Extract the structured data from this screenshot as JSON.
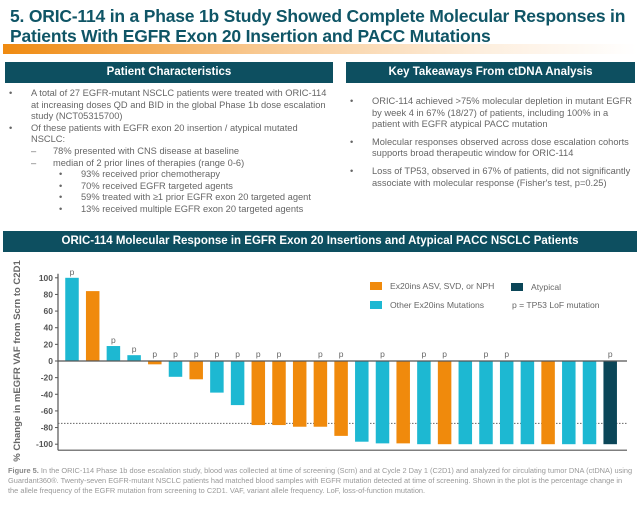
{
  "title": "5. ORIC-114 in a Phase 1b Study Showed Complete Molecular Responses in Patients With EGFR Exon 20 Insertion and PACC Mutations",
  "patient": {
    "header": "Patient Characteristics",
    "items": [
      {
        "level": 1,
        "text": "A total of 27 EGFR-mutant NSCLC patients were treated with ORIC-114 at increasing doses QD and BID in the global Phase 1b dose escalation study (NCT05315700)"
      },
      {
        "level": 1,
        "text": "Of these patients with EGFR exon 20 insertion / atypical mutated NSCLC:"
      },
      {
        "level": 2,
        "text": "78% presented with CNS disease at baseline"
      },
      {
        "level": 2,
        "text": "median of 2 prior lines of therapies (range 0-6)"
      },
      {
        "level": 3,
        "text": "93% received prior chemotherapy"
      },
      {
        "level": 3,
        "text": "70% received EGFR targeted agents"
      },
      {
        "level": 3,
        "text": "59% treated with ≥1 prior EGFR exon 20 targeted agent"
      },
      {
        "level": 3,
        "text": "13% received multiple EGFR exon 20 targeted agents"
      }
    ]
  },
  "takeaways": {
    "header": "Key Takeaways From ctDNA Analysis",
    "items": [
      "ORIC-114 achieved >75% molecular depletion in mutant EGFR by week 4 in 67% (18/27) of patients, including 100% in a patient with EGFR atypical PACC mutation",
      "Molecular responses observed across dose escalation cohorts supports broad therapeutic window for ORIC-114",
      "Loss of TP53, observed in 67% of patients, did not significantly associate with molecular response (Fisher's test, p=0.25)"
    ]
  },
  "chart_data": {
    "type": "bar",
    "title": "ORIC-114 Molecular Response in EGFR Exon 20 Insertions and Atypical PACC NSCLC Patients",
    "ylabel": "% Change in mEGFR VAF from Scrn to C2D1",
    "xlabel": "",
    "ylim": [
      -100,
      100
    ],
    "yticks": [
      100,
      80,
      60,
      40,
      20,
      0,
      -20,
      -40,
      -60,
      -80,
      -100
    ],
    "reference_line": -75,
    "legend_placement": "top-right",
    "groups": {
      "asv": {
        "name": "Ex20ins ASV, SVD, or NPH",
        "color": "#f08a0c"
      },
      "other": {
        "name": "Other Ex20ins Mutations",
        "color": "#1db8d2"
      },
      "atypical": {
        "name": "Atypical",
        "color": "#0b4658"
      }
    },
    "marker_note": "p = TP53 LoF mutation",
    "marker_label": "p",
    "values": [
      100,
      84,
      18,
      7,
      -4,
      -19,
      -22,
      -38,
      -53,
      -77,
      -77,
      -79,
      -79,
      -90,
      -97,
      -99,
      -99,
      -100,
      -100,
      -100,
      -100,
      -100,
      -100,
      -100,
      -100,
      -100,
      -100
    ],
    "group": [
      "other",
      "asv",
      "other",
      "other",
      "asv",
      "other",
      "asv",
      "other",
      "other",
      "asv",
      "asv",
      "asv",
      "asv",
      "asv",
      "other",
      "other",
      "asv",
      "other",
      "asv",
      "other",
      "other",
      "other",
      "other",
      "asv",
      "other",
      "other",
      "atypical"
    ],
    "tp53": [
      true,
      false,
      true,
      true,
      true,
      true,
      true,
      true,
      true,
      true,
      true,
      false,
      true,
      true,
      false,
      true,
      false,
      true,
      true,
      false,
      true,
      true,
      false,
      false,
      false,
      false,
      true
    ]
  },
  "caption": {
    "label": "Figure 5.",
    "text": " In the ORIC-114 Phase 1b dose escalation study, blood was collected at time of screening (Scrn) and at Cycle 2 Day 1 (C2D1) and analyzed for circulating tumor DNA (ctDNA) using Guardant360®. Twenty-seven EGFR-mutant NSCLC patients had matched blood samples with EGFR mutation detected at time of screening. Shown in the plot is the percentage change in the allele frequency of the EGFR mutation from screening to C2D1. VAF, variant allele frequency. LoF, loss-of-function mutation."
  }
}
